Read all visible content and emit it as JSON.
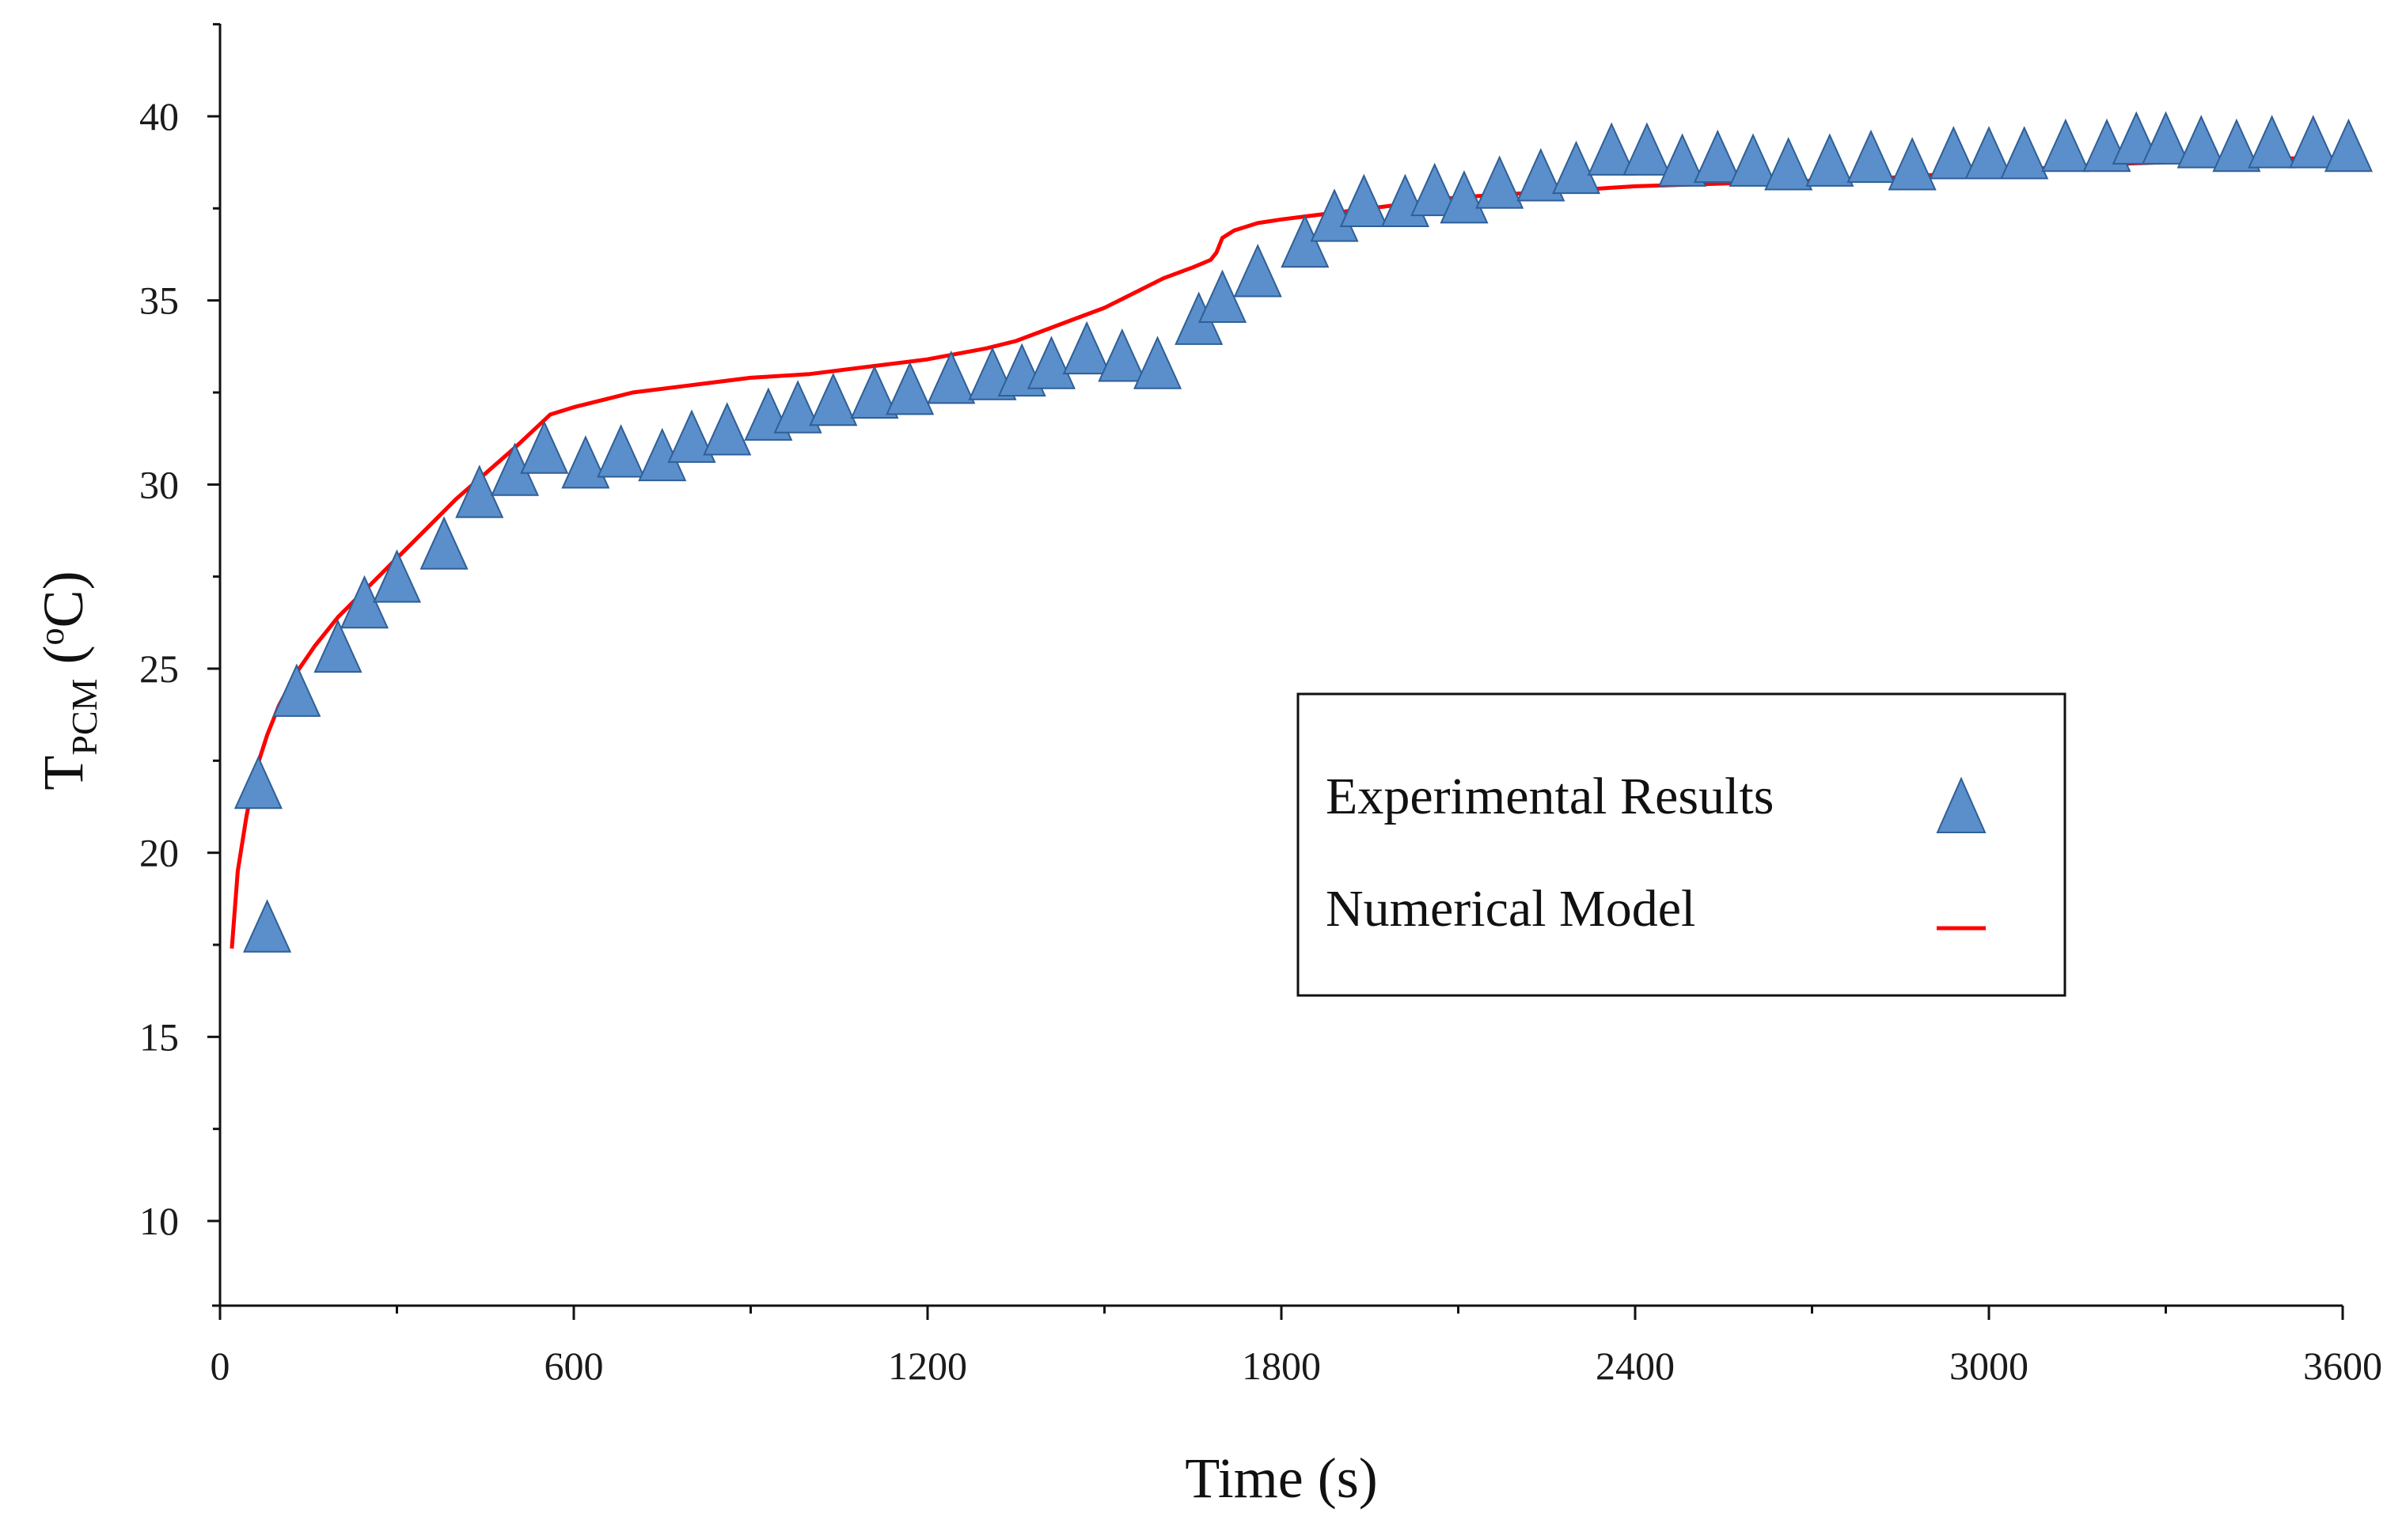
{
  "chart_data": {
    "type": "scatter",
    "title": "",
    "xlabel": "Time (s)",
    "ylabel": {
      "main": "T",
      "subscript": "PCM",
      "open": " (",
      "superscript": "o",
      "unit": "C)"
    },
    "xlim": [
      0,
      3600
    ],
    "ylim": [
      7.5,
      42.5
    ],
    "x_ticks": [
      0,
      600,
      1200,
      1800,
      2400,
      3000,
      3600
    ],
    "x_tick_labels": [
      "0",
      "600",
      "1200",
      "1800",
      "2400",
      "3000",
      "3600"
    ],
    "x_minor_step": 300,
    "y_ticks": [
      10,
      15,
      20,
      25,
      30,
      35,
      40
    ],
    "y_tick_labels": [
      "10",
      "15",
      "20",
      "25",
      "30",
      "35",
      "40"
    ],
    "y_minor_step": 2.5,
    "grid": false,
    "legend_position": "center-right",
    "series": [
      {
        "name": "Experimental Results",
        "marker": "triangle",
        "color": "#5a8fcb",
        "edge_color": "#2f5f96",
        "x": [
          80,
          65,
          130,
          200,
          245,
          300,
          380,
          440,
          500,
          550,
          620,
          680,
          750,
          800,
          860,
          930,
          980,
          1040,
          1110,
          1170,
          1240,
          1310,
          1360,
          1410,
          1470,
          1530,
          1590,
          1660,
          1700,
          1760,
          1840,
          1890,
          1940,
          2010,
          2060,
          2110,
          2170,
          2240,
          2300,
          2360,
          2420,
          2480,
          2540,
          2600,
          2660,
          2730,
          2800,
          2870,
          2940,
          3000,
          3060,
          3130,
          3200,
          3250,
          3300,
          3360,
          3420,
          3480,
          3550,
          3610
        ],
        "y": [
          18.0,
          21.9,
          24.4,
          25.6,
          26.8,
          27.5,
          28.4,
          29.8,
          30.4,
          31.0,
          30.6,
          30.9,
          30.8,
          31.3,
          31.5,
          31.9,
          32.1,
          32.3,
          32.5,
          32.6,
          32.9,
          33.0,
          33.1,
          33.3,
          33.7,
          33.5,
          33.3,
          34.5,
          35.1,
          35.8,
          36.6,
          37.3,
          37.7,
          37.7,
          38.0,
          37.8,
          38.2,
          38.4,
          38.6,
          39.1,
          39.1,
          38.8,
          38.9,
          38.8,
          38.7,
          38.8,
          38.9,
          38.7,
          39.0,
          39.0,
          39.0,
          39.2,
          39.2,
          39.4,
          39.4,
          39.3,
          39.2,
          39.3,
          39.3,
          39.2
        ]
      },
      {
        "name": "Numerical Model",
        "marker": "line",
        "color": "#ff0000",
        "x": [
          20,
          30,
          45,
          60,
          80,
          100,
          130,
          160,
          200,
          250,
          300,
          350,
          400,
          450,
          500,
          540,
          560,
          600,
          700,
          800,
          900,
          1000,
          1100,
          1200,
          1300,
          1350,
          1400,
          1450,
          1500,
          1550,
          1600,
          1650,
          1680,
          1690,
          1700,
          1720,
          1760,
          1800,
          1900,
          2000,
          2100,
          2200,
          2300,
          2400,
          2600,
          2800,
          3000,
          3200,
          3400,
          3600
        ],
        "y": [
          17.4,
          19.5,
          21.0,
          22.2,
          23.2,
          24.0,
          24.9,
          25.6,
          26.4,
          27.2,
          28.0,
          28.8,
          29.6,
          30.3,
          31.0,
          31.6,
          31.9,
          32.1,
          32.5,
          32.7,
          32.9,
          33.0,
          33.2,
          33.4,
          33.7,
          33.9,
          34.2,
          34.5,
          34.8,
          35.2,
          35.6,
          35.9,
          36.1,
          36.3,
          36.7,
          36.9,
          37.1,
          37.2,
          37.4,
          37.6,
          37.8,
          37.9,
          38.0,
          38.1,
          38.2,
          38.3,
          38.5,
          38.7,
          38.8,
          38.9
        ]
      }
    ]
  }
}
